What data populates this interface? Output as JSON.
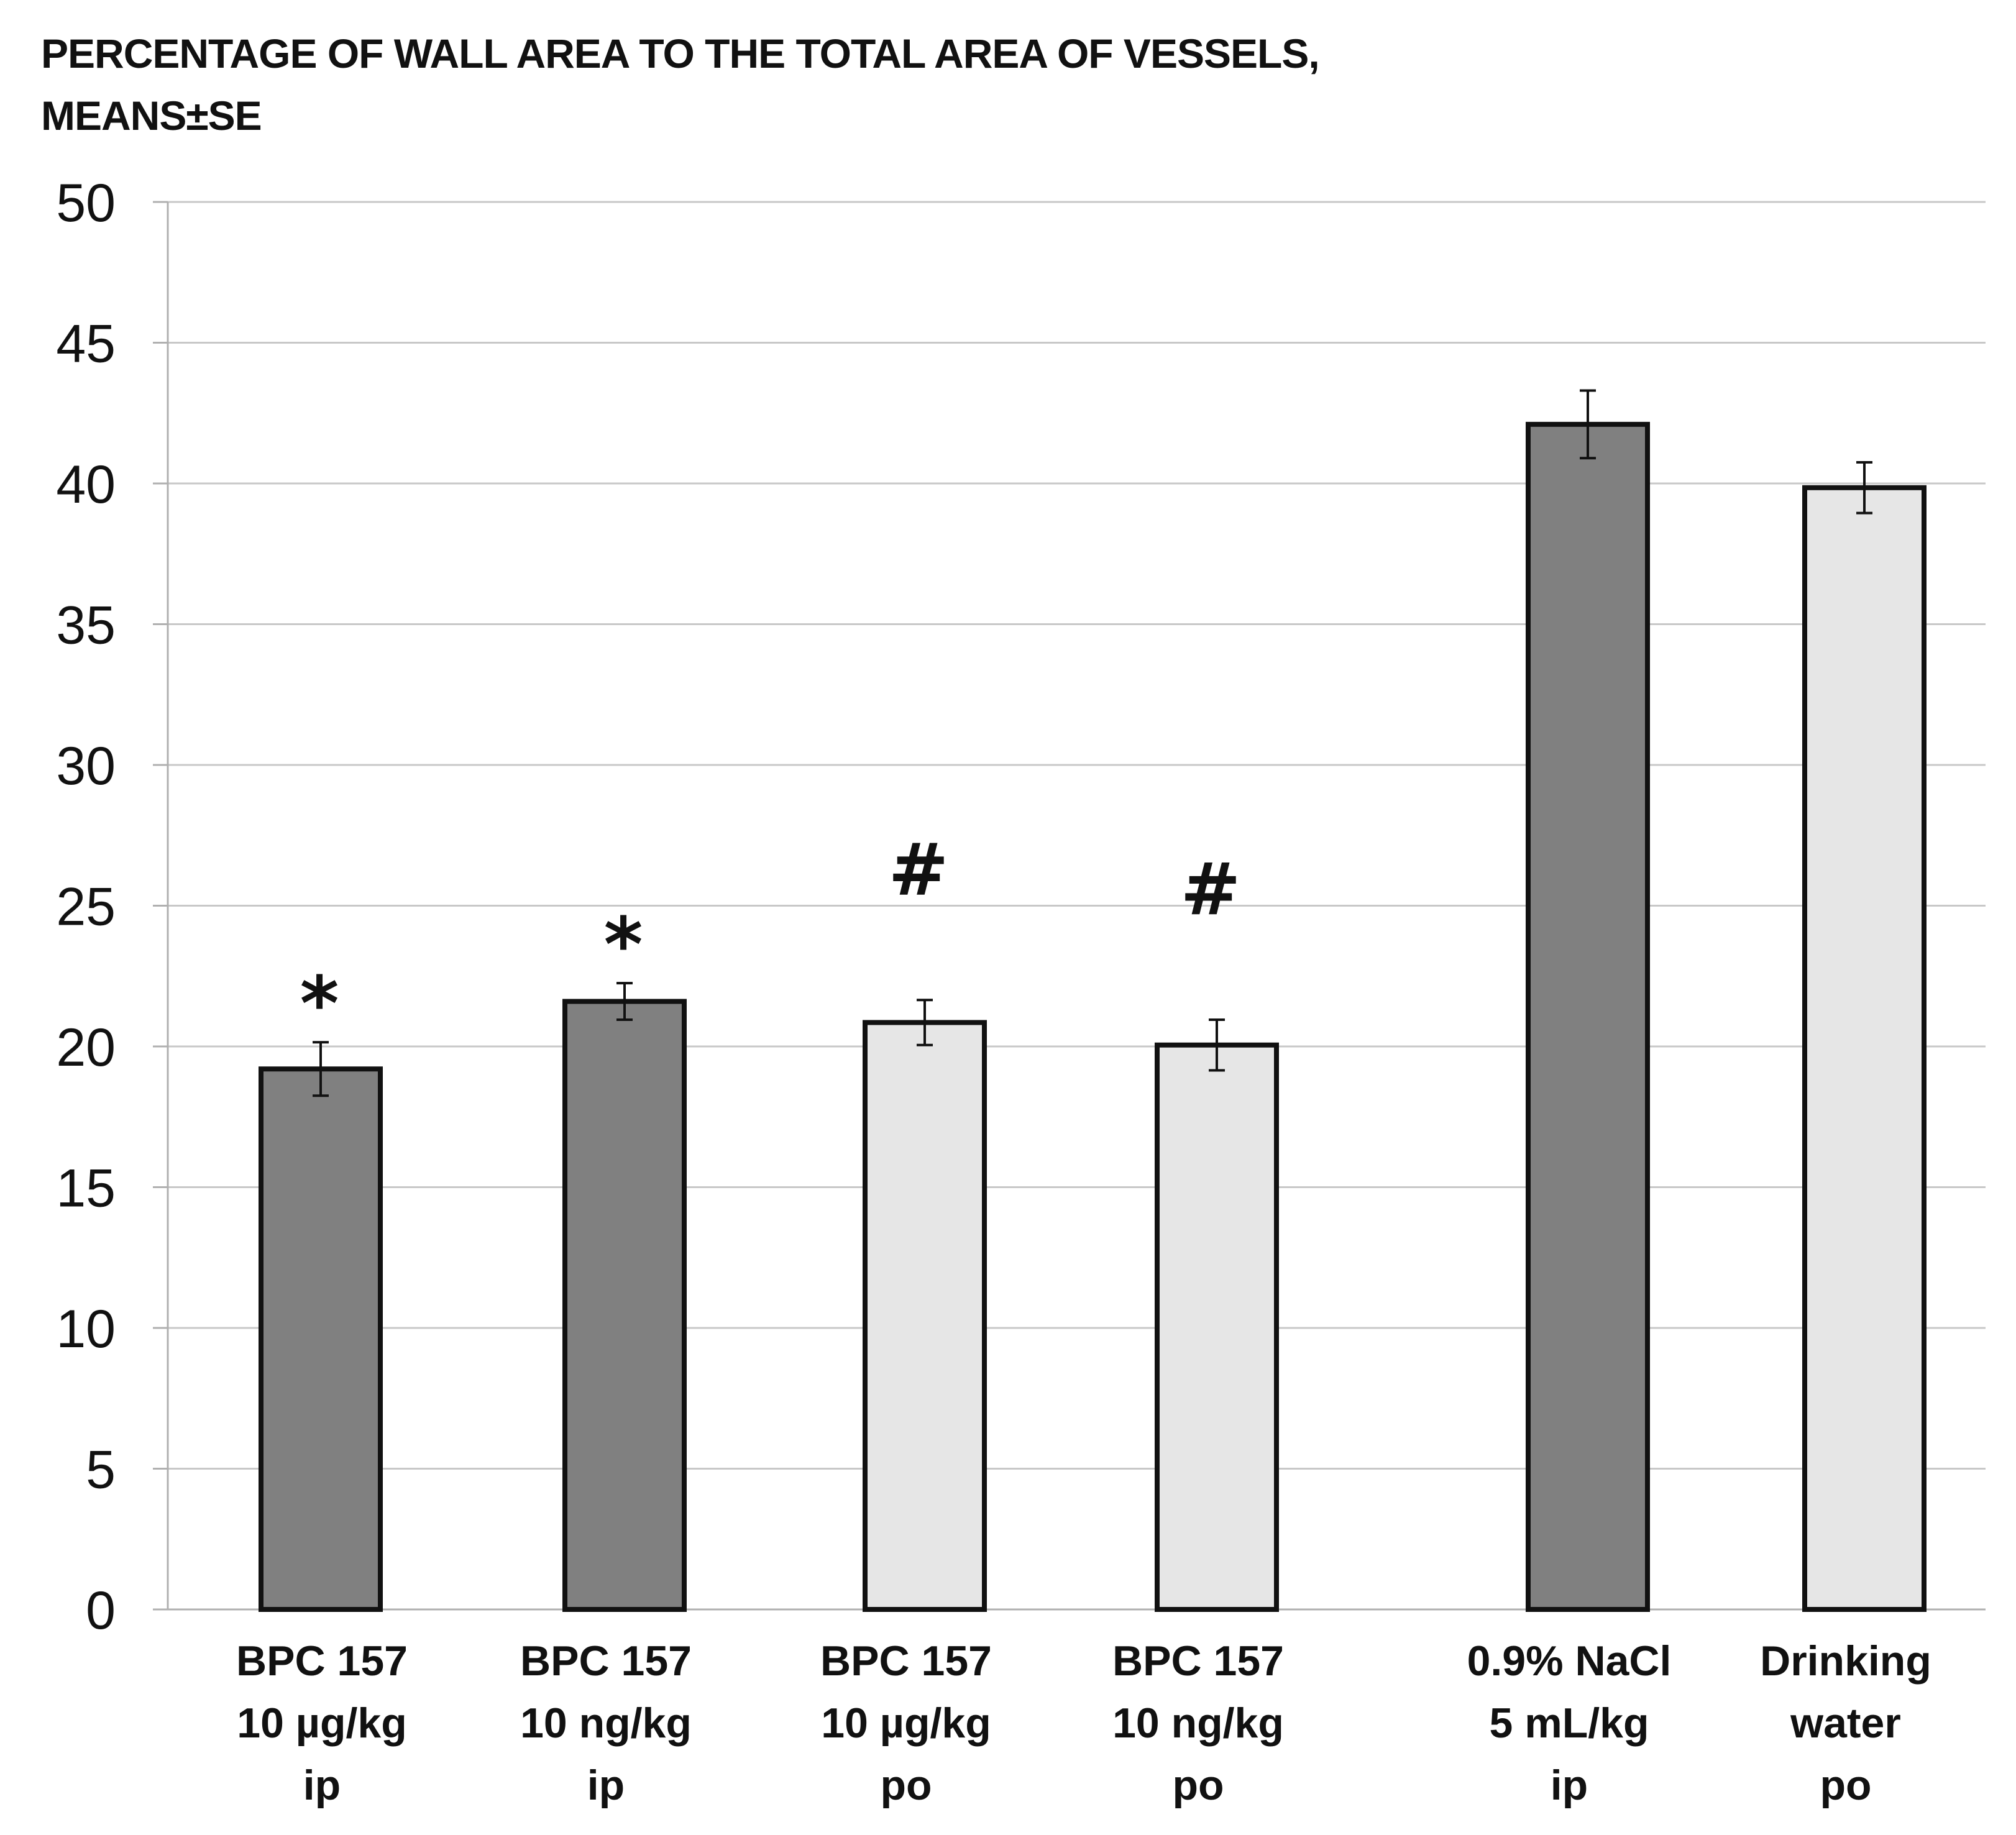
{
  "chart_data": {
    "type": "bar",
    "title_lines": [
      "PERCENTAGE OF WALL  AREA TO THE TOTAL AREA OF VESSELS,",
      "MEANS±SE"
    ],
    "xlabel": "",
    "ylabel": "",
    "ylim": [
      0,
      50
    ],
    "yticks": [
      0,
      5,
      10,
      15,
      20,
      25,
      30,
      35,
      40,
      45,
      50
    ],
    "grid": true,
    "categories": [
      {
        "lines": [
          "BPC 157",
          "10 µg/kg",
          "ip"
        ]
      },
      {
        "lines": [
          "BPC 157",
          "10 ng/kg",
          "ip"
        ]
      },
      {
        "lines": [
          "BPC 157",
          "10 µg/kg",
          "po"
        ]
      },
      {
        "lines": [
          "BPC 157",
          "10 ng/kg",
          "po"
        ]
      },
      {
        "lines": [
          "0.9% NaCl",
          "5 mL/kg",
          "ip"
        ]
      },
      {
        "lines": [
          "Drinking",
          "water",
          "po"
        ]
      }
    ],
    "values": [
      19.2,
      21.6,
      20.85,
      20.05,
      42.1,
      39.85
    ],
    "errors": [
      0.95,
      0.65,
      0.8,
      0.9,
      1.2,
      0.9
    ],
    "significance": [
      "*",
      "*",
      "#",
      "#",
      "",
      ""
    ],
    "bar_colors": [
      "#808080",
      "#808080",
      "#e6e6e6",
      "#e6e6e6",
      "#808080",
      "#e6e6e6"
    ],
    "colors": {
      "grid": "#c8c8c8",
      "axis": "#b0b0b0",
      "bar_outline": "#111111",
      "text": "#111111"
    }
  }
}
